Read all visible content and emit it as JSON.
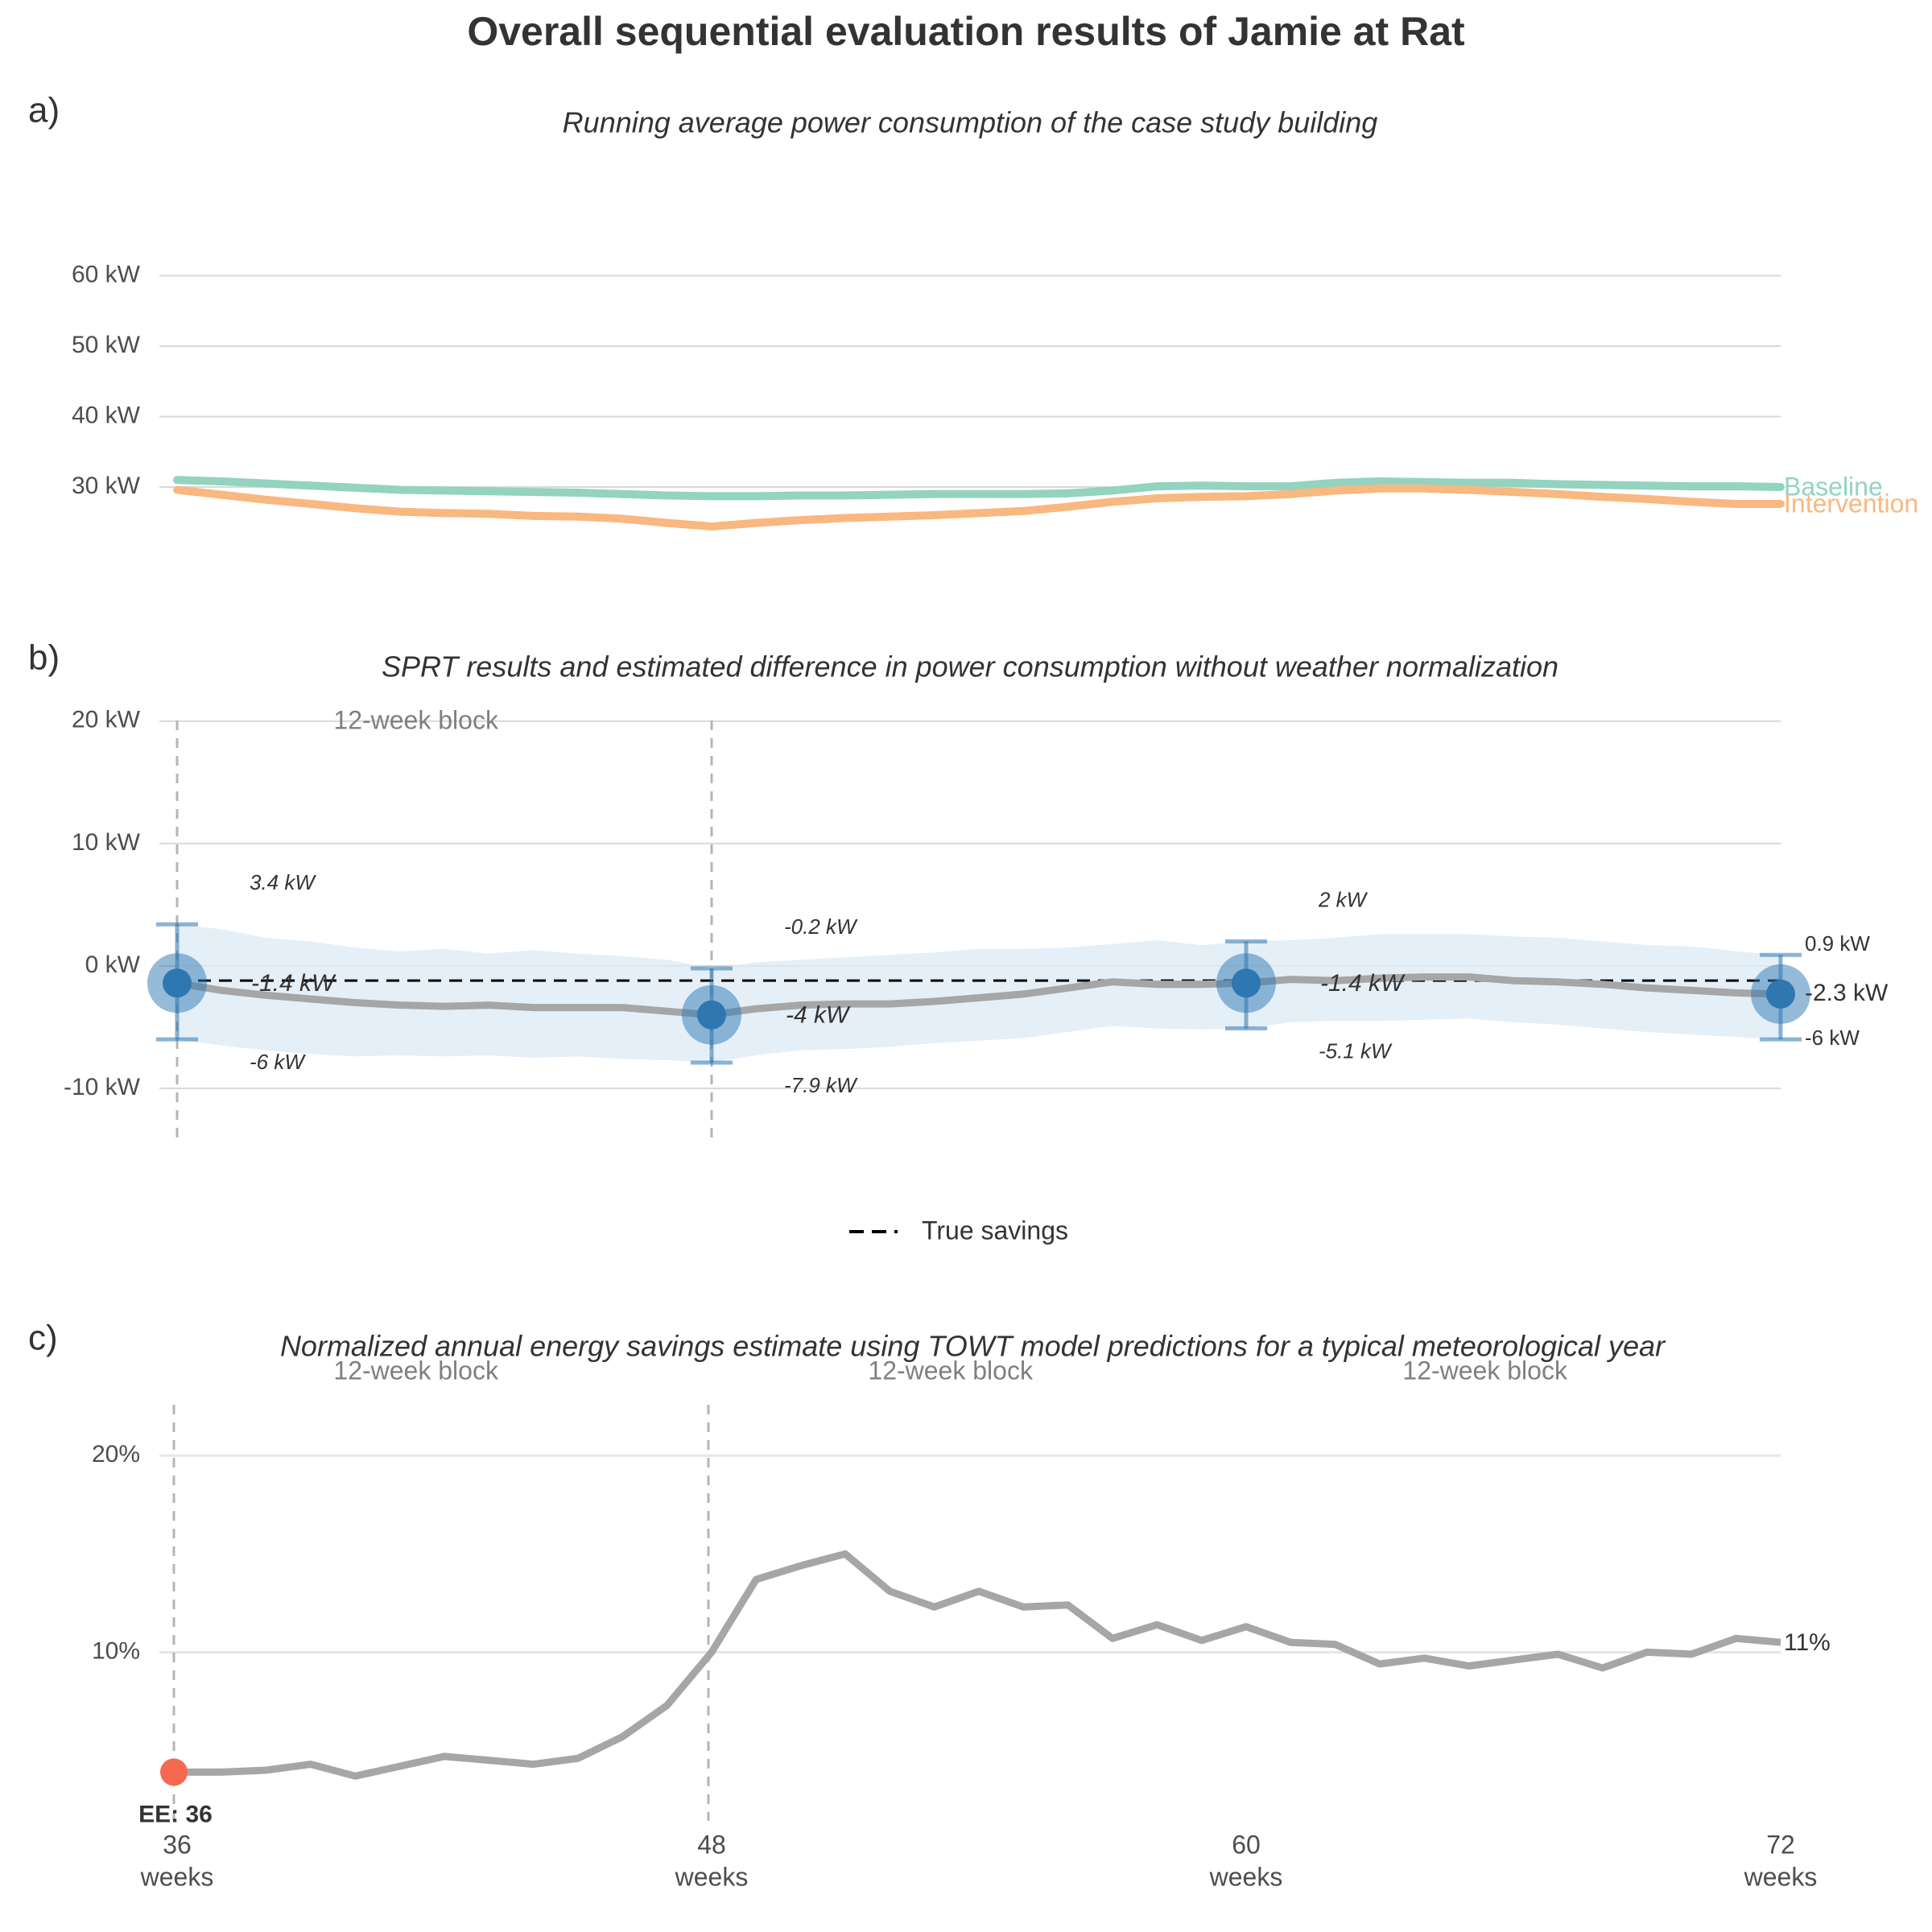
{
  "title": "Overall sequential evaluation results of Jamie at Rat",
  "colors": {
    "baseline": "#93d3c0",
    "intervention": "#f8b87f",
    "estimate_line": "#a6a6a6",
    "ci_band": "#dceaf5",
    "point": "#2e77b1",
    "grid": "#d9d9d9",
    "block_line": "#b5b5b5",
    "ee_point": "#f4694f",
    "text": "#333333",
    "muted": "#7f7f7f"
  },
  "x_axis": {
    "ticks": [
      {
        "value": 36,
        "line1": "36",
        "line2": "weeks"
      },
      {
        "value": 48,
        "line1": "48",
        "line2": "weeks"
      },
      {
        "value": 60,
        "line1": "60",
        "line2": "weeks"
      },
      {
        "value": 72,
        "line1": "72",
        "line2": "weeks"
      }
    ],
    "range": [
      36,
      72
    ]
  },
  "block_label": "12-week block",
  "chart_data": [
    {
      "panel": "a)",
      "type": "line",
      "title": "Running average power consumption of the case study building",
      "ylim": [
        10,
        70
      ],
      "yticks": [
        {
          "value": 30,
          "label": "30 kW"
        },
        {
          "value": 40,
          "label": "40 kW"
        },
        {
          "value": 50,
          "label": "50 kW"
        },
        {
          "value": 60,
          "label": "60 kW"
        }
      ],
      "x": [
        36,
        37,
        38,
        39,
        40,
        41,
        42,
        43,
        44,
        45,
        46,
        47,
        48,
        49,
        50,
        51,
        52,
        53,
        54,
        55,
        56,
        57,
        58,
        59,
        60,
        61,
        62,
        63,
        64,
        65,
        66,
        67,
        68,
        69,
        70,
        71,
        72
      ],
      "series": [
        {
          "name": "Baseline",
          "values": [
            31.0,
            30.8,
            30.5,
            30.2,
            29.9,
            29.6,
            29.5,
            29.4,
            29.3,
            29.2,
            29.0,
            28.8,
            28.7,
            28.7,
            28.8,
            28.8,
            28.9,
            29.0,
            29.0,
            29.0,
            29.1,
            29.5,
            30.1,
            30.2,
            30.1,
            30.1,
            30.6,
            30.8,
            30.7,
            30.6,
            30.6,
            30.4,
            30.3,
            30.2,
            30.1,
            30.1,
            30.0
          ]
        },
        {
          "name": "Intervention",
          "values": [
            29.6,
            28.9,
            28.2,
            27.6,
            27.0,
            26.5,
            26.3,
            26.2,
            25.9,
            25.8,
            25.5,
            24.9,
            24.4,
            24.9,
            25.3,
            25.6,
            25.8,
            26.0,
            26.3,
            26.6,
            27.2,
            27.9,
            28.4,
            28.6,
            28.7,
            29.0,
            29.5,
            29.8,
            29.8,
            29.6,
            29.3,
            29.0,
            28.6,
            28.3,
            27.9,
            27.6,
            27.6
          ]
        }
      ],
      "end_labels": [
        "Baseline",
        "Intervention"
      ]
    },
    {
      "panel": "b)",
      "type": "line",
      "title": "SPRT results and estimated difference in power consumption without weather normalization",
      "ylim": [
        -15,
        24
      ],
      "yticks": [
        {
          "value": -10,
          "label": "-10 kW"
        },
        {
          "value": 0,
          "label": "0 kW"
        },
        {
          "value": 10,
          "label": "10 kW"
        },
        {
          "value": 20,
          "label": "20 kW"
        }
      ],
      "x": [
        36,
        37,
        38,
        39,
        40,
        41,
        42,
        43,
        44,
        45,
        46,
        47,
        48,
        49,
        50,
        51,
        52,
        53,
        54,
        55,
        56,
        57,
        58,
        59,
        60,
        61,
        62,
        63,
        64,
        65,
        66,
        67,
        68,
        69,
        70,
        71,
        72
      ],
      "estimate": [
        -1.4,
        -2.0,
        -2.4,
        -2.7,
        -3.0,
        -3.2,
        -3.3,
        -3.2,
        -3.4,
        -3.4,
        -3.4,
        -3.7,
        -4.0,
        -3.5,
        -3.2,
        -3.1,
        -3.1,
        -2.9,
        -2.6,
        -2.3,
        -1.8,
        -1.3,
        -1.5,
        -1.5,
        -1.4,
        -1.1,
        -1.2,
        -1.0,
        -0.9,
        -0.9,
        -1.2,
        -1.3,
        -1.5,
        -1.8,
        -2.0,
        -2.2,
        -2.3
      ],
      "ci_upper": [
        3.4,
        3.0,
        2.3,
        2.0,
        1.5,
        1.2,
        1.4,
        1.0,
        1.3,
        1.0,
        0.8,
        0.5,
        -0.2,
        0.3,
        0.5,
        0.7,
        0.9,
        1.1,
        1.4,
        1.4,
        1.5,
        1.8,
        2.1,
        1.7,
        2.0,
        2.1,
        2.3,
        2.6,
        2.6,
        2.6,
        2.4,
        2.3,
        2.0,
        1.7,
        1.6,
        1.2,
        0.9
      ],
      "ci_lower": [
        -6.0,
        -6.5,
        -6.9,
        -7.2,
        -7.4,
        -7.3,
        -7.4,
        -7.3,
        -7.5,
        -7.4,
        -7.6,
        -7.7,
        -7.9,
        -7.3,
        -6.9,
        -6.8,
        -6.6,
        -6.3,
        -6.1,
        -5.9,
        -5.4,
        -4.9,
        -5.1,
        -5.2,
        -5.1,
        -4.6,
        -4.5,
        -4.5,
        -4.4,
        -4.3,
        -4.6,
        -4.8,
        -5.1,
        -5.4,
        -5.6,
        -5.8,
        -6.0
      ],
      "true_savings": -1.2,
      "sprt_points": [
        {
          "x": 36,
          "estimate": -1.4,
          "upper": 3.4,
          "lower": -6.0,
          "est_label": "-1.4 kW",
          "upper_label": "3.4 kW",
          "lower_label": "-6 kW"
        },
        {
          "x": 48,
          "estimate": -4.0,
          "upper": -0.2,
          "lower": -7.9,
          "est_label": "-4 kW",
          "upper_label": "-0.2 kW",
          "lower_label": "-7.9 kW"
        },
        {
          "x": 60,
          "estimate": -1.4,
          "upper": 2.0,
          "lower": -5.1,
          "est_label": "-1.4 kW",
          "upper_label": "2 kW",
          "lower_label": "-5.1 kW"
        },
        {
          "x": 72,
          "estimate": -2.3,
          "upper": 0.9,
          "lower": -6.0,
          "est_label": "-2.3 kW",
          "upper_label": "0.9 kW",
          "lower_label": "-6 kW"
        }
      ],
      "block_lines": [
        36,
        48
      ],
      "block_label_x": [
        41
      ],
      "legend": {
        "label": "True savings",
        "position": "bottom"
      }
    },
    {
      "panel": "c)",
      "type": "line",
      "title": "Normalized annual energy savings estimate using TOWT model predictions for a typical meteorological year",
      "ylim": [
        1.5,
        23
      ],
      "yticks": [
        {
          "value": 10,
          "label": "10%"
        },
        {
          "value": 20,
          "label": "20%"
        }
      ],
      "x": [
        36,
        37,
        38,
        39,
        40,
        41,
        42,
        43,
        44,
        45,
        46,
        47,
        48,
        49,
        50,
        51,
        52,
        53,
        54,
        55,
        56,
        57,
        58,
        59,
        60,
        61,
        62,
        63,
        64,
        65,
        66,
        67,
        68,
        69,
        70,
        71,
        72
      ],
      "values": [
        3.9,
        3.9,
        4.0,
        4.3,
        3.7,
        4.2,
        4.7,
        4.5,
        4.3,
        4.6,
        5.7,
        7.3,
        10.0,
        13.7,
        14.4,
        15.0,
        13.1,
        12.3,
        13.1,
        12.3,
        12.4,
        10.7,
        11.4,
        10.6,
        11.3,
        10.5,
        10.4,
        9.4,
        9.7,
        9.3,
        9.6,
        9.9,
        9.2,
        10.0,
        9.9,
        10.7,
        10.5
      ],
      "end_label": "11%",
      "block_lines": [
        36,
        48
      ],
      "block_label_x": [
        41,
        53,
        65
      ],
      "ee_point": {
        "x": 36,
        "value": 3.9,
        "label": "EE: 36"
      }
    }
  ]
}
